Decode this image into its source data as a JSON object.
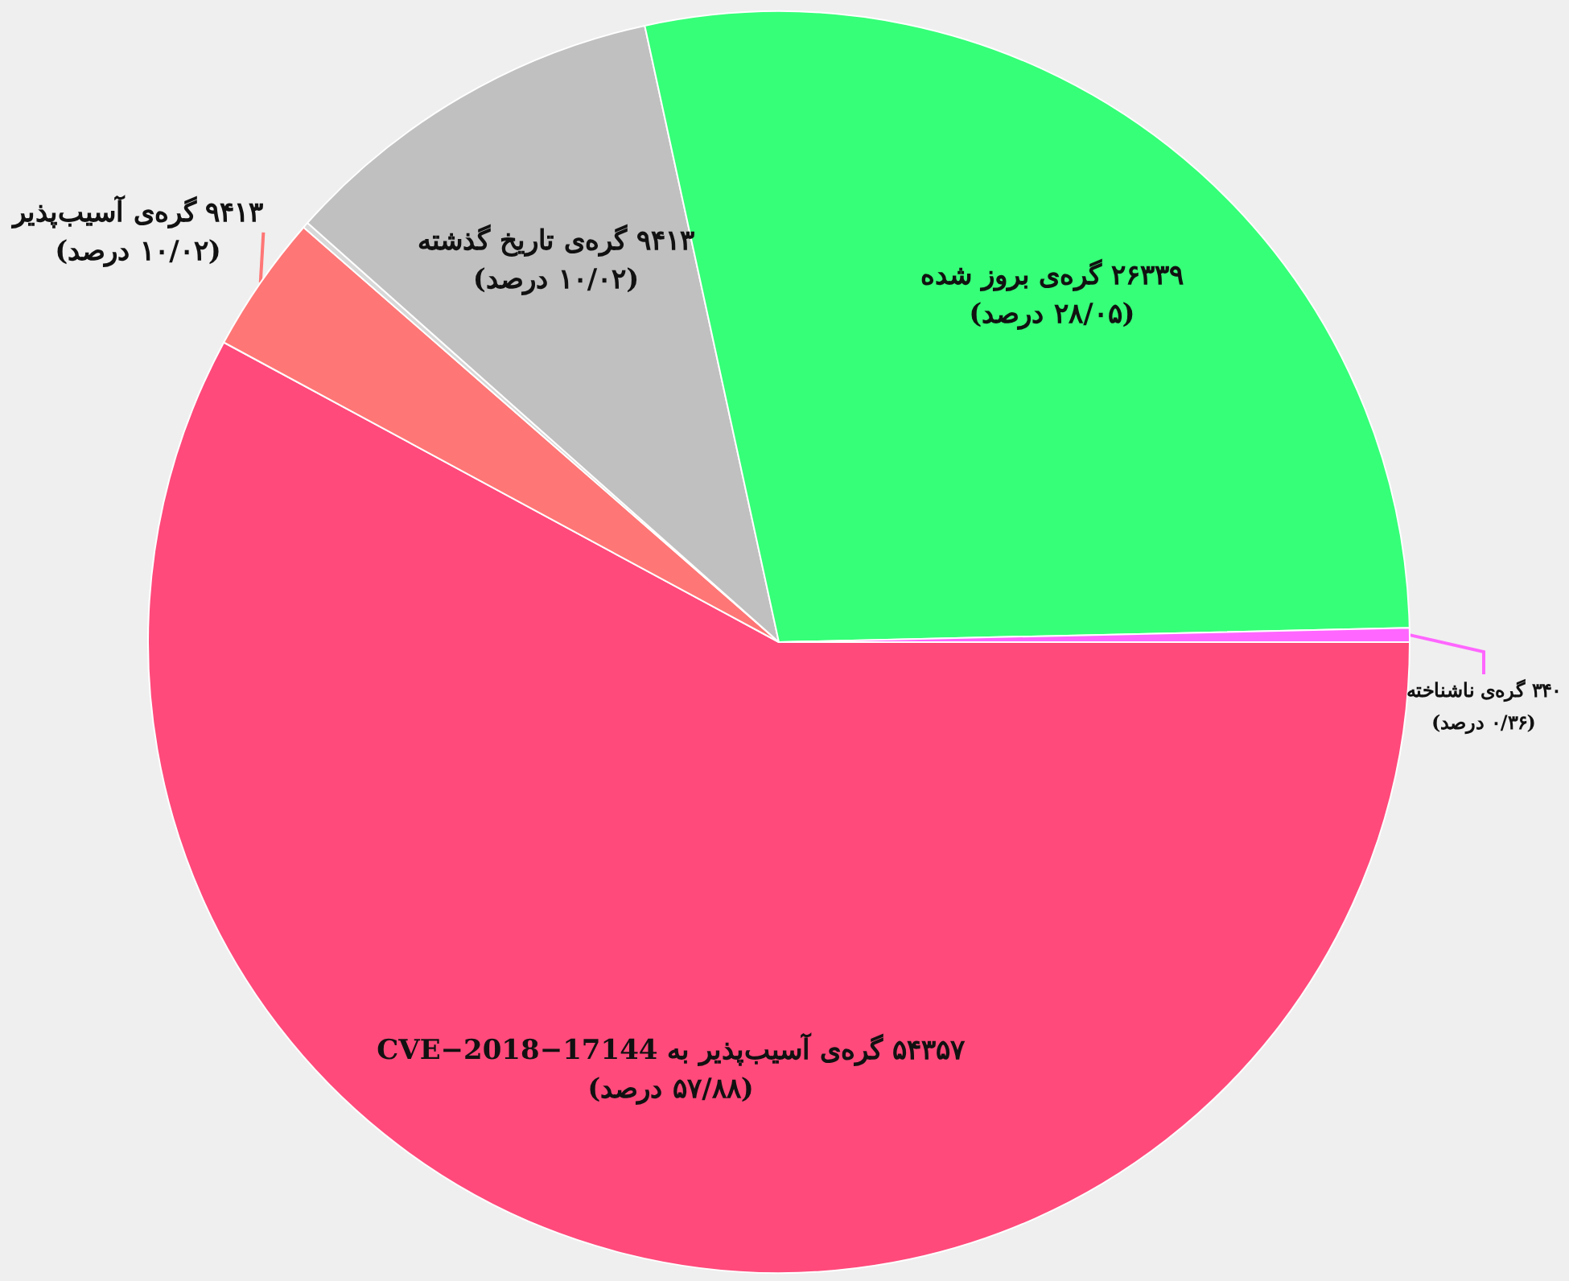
{
  "chart_data": {
    "type": "pie",
    "categories": [
      "۵۴۳۵۷ گره‌ی آسیب‌پذیر به CVE−2018−17144",
      "۹۴۱۳ گره‌ی آسیب‌پذیر",
      null,
      "۹۴۱۳ گره‌ی تاریخ گذشته",
      "۲۶۳۳۹ گره‌ی بروز شده",
      "۳۴۰ گره‌ی ناشناخته"
    ],
    "values": [
      57.88,
      3.54,
      0.15,
      10.02,
      28.05,
      0.36
    ],
    "value_labels": [
      "(۵۷/۸۸ درصد)",
      "(۱۰/۰۲ درصد)",
      null,
      "(۱۰/۰۲ درصد)",
      "(۲۸/۰۵ درصد)",
      "(۰/۳۶ درصد)"
    ],
    "colors": [
      "#ff4a7b",
      "#ff7676",
      "#d8d8d8",
      "#c0c0c0",
      "#36ff78",
      "#ff66ff"
    ],
    "legend": false
  }
}
